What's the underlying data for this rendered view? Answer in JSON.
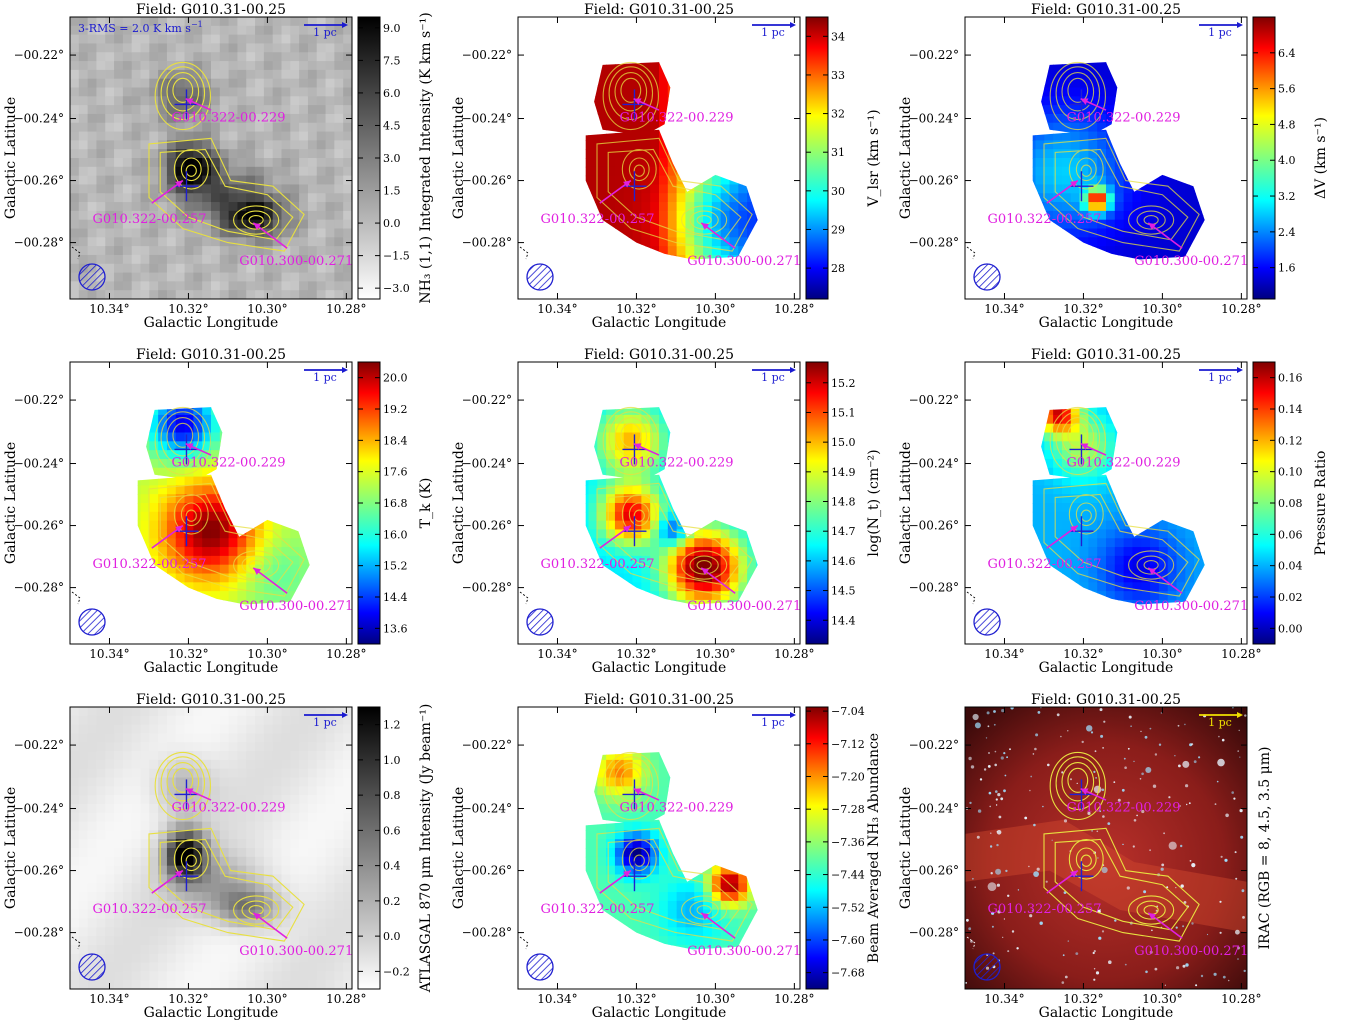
{
  "figure": {
    "field_title": "Field: G010.31-00.25",
    "xlabel": "Galactic Longitude",
    "ylabel": "Galactic Latitude",
    "x_ticks": [
      "10.34°",
      "10.32°",
      "10.30°",
      "10.28°"
    ],
    "y_ticks": [
      "−00.22°",
      "−00.24°",
      "−00.26°",
      "−00.28°"
    ],
    "scalebar_label": "1 pc",
    "rms_note": "3-RMS = 2.0 K km s",
    "sources": [
      {
        "name": "G010.322-00.229"
      },
      {
        "name": "G010.322-00.257"
      },
      {
        "name": "G010.300-00.271"
      }
    ],
    "colors": {
      "label_magenta": "#e020e0",
      "scalebar_blue": "#1a1ad0",
      "scalebar_yellow": "#f0e000",
      "contour": "#e8e040",
      "beam": "#2020d0"
    },
    "panels": [
      {
        "id": "integrated-intensity",
        "cmap": "gray",
        "cbar_label": "NH₃ (1,1) Integrated Intensity (K km s⁻¹)",
        "cbar_ticks": [
          "9.0",
          "7.5",
          "6.0",
          "4.5",
          "3.0",
          "1.5",
          "0.0",
          "−1.5",
          "−3.0"
        ],
        "cbar_range": [
          -3.5,
          9.5
        ]
      },
      {
        "id": "vlsr",
        "cmap": "jet",
        "cbar_label": "V_lsr (km s⁻¹)",
        "cbar_ticks": [
          "34",
          "33",
          "32",
          "31",
          "30",
          "29",
          "28"
        ],
        "cbar_range": [
          27.2,
          34.5
        ]
      },
      {
        "id": "linewidth",
        "cmap": "jet",
        "cbar_label": "ΔV (km s⁻¹)",
        "cbar_ticks": [
          "6.4",
          "5.6",
          "4.8",
          "4.0",
          "3.2",
          "2.4",
          "1.6"
        ],
        "cbar_range": [
          0.9,
          7.2
        ]
      },
      {
        "id": "kinetic-temperature",
        "cmap": "jet",
        "cbar_label": "T_k (K)",
        "cbar_ticks": [
          "20.0",
          "19.2",
          "18.4",
          "17.6",
          "16.8",
          "16.0",
          "15.2",
          "14.4",
          "13.6"
        ],
        "cbar_range": [
          13.2,
          20.4
        ]
      },
      {
        "id": "column-density",
        "cmap": "jet",
        "cbar_label": "log(N_t) (cm⁻²)",
        "cbar_ticks": [
          "15.2",
          "15.1",
          "15.0",
          "14.9",
          "14.8",
          "14.7",
          "14.6",
          "14.5",
          "14.4"
        ],
        "cbar_range": [
          14.32,
          15.27
        ]
      },
      {
        "id": "pressure-ratio",
        "cmap": "jet",
        "cbar_label": "Pressure Ratio",
        "cbar_ticks": [
          "0.16",
          "0.14",
          "0.12",
          "0.10",
          "0.08",
          "0.06",
          "0.04",
          "0.02",
          "0.00"
        ],
        "cbar_range": [
          -0.01,
          0.17
        ]
      },
      {
        "id": "atlasgal",
        "cmap": "gray",
        "cbar_label": "ATLASGAL 870 μm Intensity (Jy beam⁻¹)",
        "cbar_ticks": [
          "1.2",
          "1.0",
          "0.8",
          "0.6",
          "0.4",
          "0.2",
          "0.0",
          "−0.2"
        ],
        "cbar_range": [
          -0.3,
          1.3
        ]
      },
      {
        "id": "nh3-abundance",
        "cmap": "jet",
        "cbar_label": "Beam Averaged NH₃ Abundance",
        "cbar_ticks": [
          "−7.04",
          "−7.12",
          "−7.20",
          "−7.28",
          "−7.36",
          "−7.44",
          "−7.52",
          "−7.60",
          "−7.68"
        ],
        "cbar_range": [
          -7.72,
          -7.03
        ]
      },
      {
        "id": "irac",
        "cmap": "none",
        "cbar_label": "IRAC (RGB = 8, 4.5, 3.5 μm)",
        "cbar_ticks": [],
        "cbar_range": [
          0,
          1
        ]
      }
    ]
  }
}
